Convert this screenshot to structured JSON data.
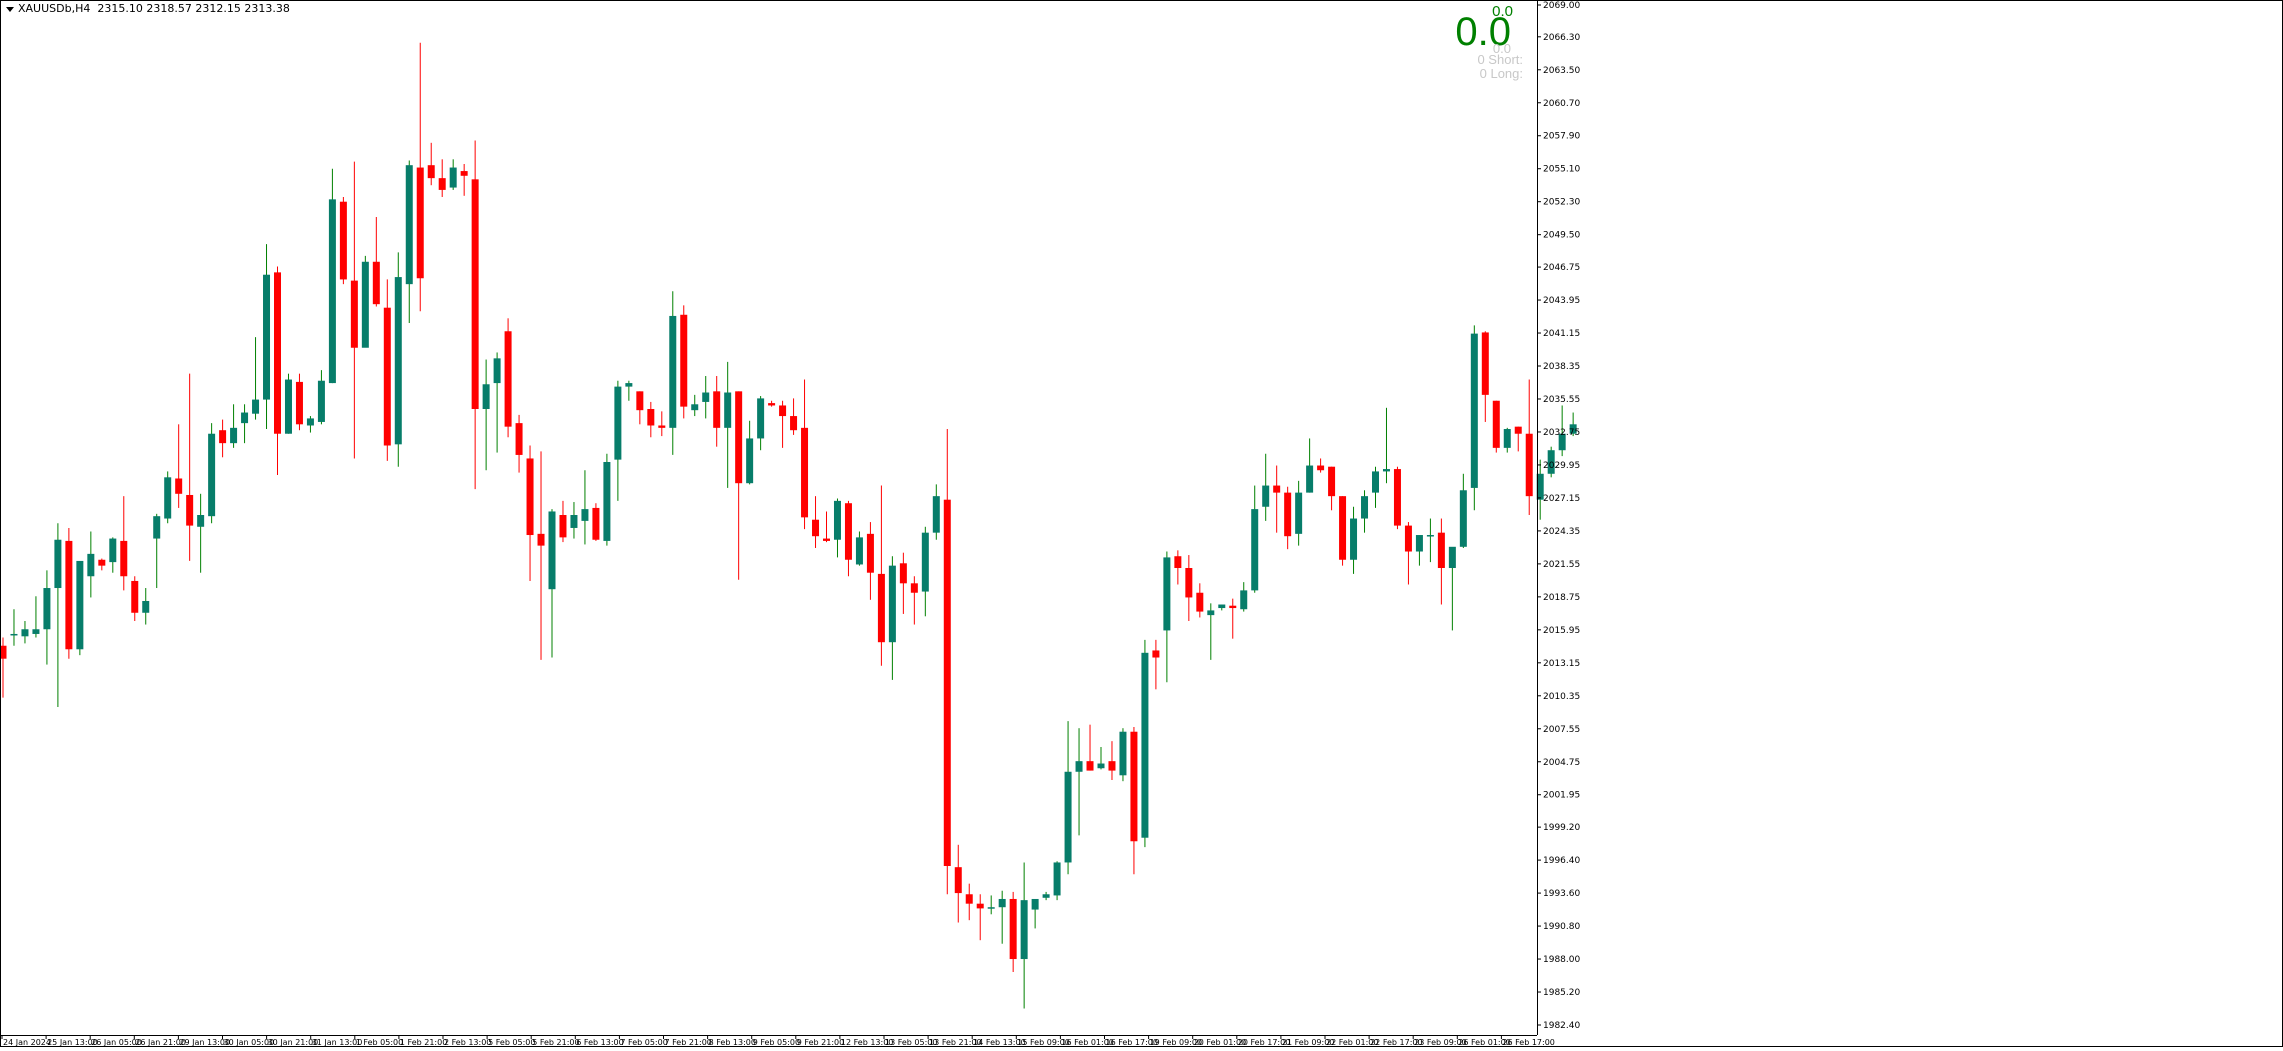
{
  "header": {
    "symbol": "XAUUSDb,H4",
    "ohlc": "2315.10 2318.57 2312.15 2313.38"
  },
  "hud": {
    "top_value": "0.0",
    "big_value": "0.0",
    "small_value": "0.0",
    "short_label": "0  Short:",
    "long_label": "0  Long:"
  },
  "colors": {
    "bull": "#077d6a",
    "bear": "#ff0000",
    "bull_wick": "#008000",
    "bear_wick": "#ff0000",
    "axis": "#000000",
    "background": "#ffffff"
  },
  "chart_data": {
    "type": "candlestick",
    "timeframe": "H4",
    "y_axis": {
      "min": 1982.4,
      "max": 2069.0,
      "position": "right",
      "tick_labels": [
        "2069.00",
        "2066.30",
        "2063.50",
        "2060.70",
        "2057.90",
        "2055.10",
        "2052.30",
        "2049.50",
        "2046.75",
        "2043.95",
        "2041.15",
        "2038.35",
        "2035.55",
        "2032.75",
        "2029.95",
        "2027.15",
        "2024.35",
        "2021.55",
        "2018.75",
        "2015.95",
        "2013.15",
        "2010.35",
        "2007.55",
        "2004.75",
        "2001.95",
        "1999.20",
        "1996.40",
        "1993.60",
        "1990.80",
        "1988.00",
        "1985.20",
        "1982.40"
      ]
    },
    "x_axis": {
      "tick_labels": [
        "24 Jan 2024",
        "25 Jan 13:00",
        "26 Jan 05:00",
        "26 Jan 21:00",
        "29 Jan 13:00",
        "30 Jan 05:00",
        "30 Jan 21:00",
        "31 Jan 13:00",
        "1 Feb 05:00",
        "1 Feb 21:00",
        "2 Feb 13:00",
        "5 Feb 05:00",
        "5 Feb 21:00",
        "6 Feb 13:00",
        "7 Feb 05:00",
        "7 Feb 21:00",
        "8 Feb 13:00",
        "9 Feb 05:00",
        "9 Feb 21:00",
        "12 Feb 13:00",
        "13 Feb 05:00",
        "13 Feb 21:00",
        "14 Feb 13:00",
        "15 Feb 09:00",
        "16 Feb 01:00",
        "16 Feb 17:00",
        "19 Feb 09:00",
        "20 Feb 01:00",
        "20 Feb 17:00",
        "21 Feb 09:00",
        "22 Feb 01:00",
        "22 Feb 17:00",
        "23 Feb 09:00",
        "26 Feb 01:00",
        "26 Feb 17:00"
      ]
    },
    "candles": [
      [
        2014.6,
        2015.3,
        2010.2,
        2013.5
      ],
      [
        2015.5,
        2017.7,
        2014.6,
        2015.6
      ],
      [
        2015.4,
        2016.7,
        2014.8,
        2016.0
      ],
      [
        2015.6,
        2018.8,
        2015.3,
        2016.0
      ],
      [
        2016.0,
        2021.0,
        2013.0,
        2019.5
      ],
      [
        2019.5,
        2025.0,
        2009.4,
        2023.6
      ],
      [
        2023.5,
        2024.6,
        2013.5,
        2014.3
      ],
      [
        2014.3,
        2021.6,
        2013.8,
        2021.8
      ],
      [
        2020.5,
        2024.3,
        2018.7,
        2022.4
      ],
      [
        2021.9,
        2022.0,
        2021.0,
        2021.4
      ],
      [
        2021.7,
        2023.8,
        2020.8,
        2023.7
      ],
      [
        2023.5,
        2027.3,
        2019.3,
        2020.5
      ],
      [
        2020.1,
        2020.5,
        2016.7,
        2017.4
      ],
      [
        2017.4,
        2019.5,
        2016.4,
        2018.4
      ],
      [
        2023.7,
        2025.8,
        2019.5,
        2025.6
      ],
      [
        2025.4,
        2029.4,
        2025.0,
        2028.9
      ],
      [
        2028.8,
        2033.4,
        2026.3,
        2027.5
      ],
      [
        2027.4,
        2037.7,
        2021.8,
        2024.8
      ],
      [
        2024.7,
        2027.5,
        2020.8,
        2025.7
      ],
      [
        2025.6,
        2033.5,
        2025.0,
        2032.6
      ],
      [
        2032.9,
        2033.8,
        2030.6,
        2031.8
      ],
      [
        2031.8,
        2035.1,
        2031.4,
        2033.1
      ],
      [
        2033.5,
        2035.1,
        2031.8,
        2034.4
      ],
      [
        2034.3,
        2040.8,
        2033.8,
        2035.5
      ],
      [
        2035.5,
        2048.7,
        2033.0,
        2046.1
      ],
      [
        2046.3,
        2046.8,
        2029.1,
        2032.6
      ],
      [
        2032.6,
        2037.7,
        2032.6,
        2037.2
      ],
      [
        2037.0,
        2037.7,
        2032.9,
        2033.4
      ],
      [
        2033.3,
        2034.1,
        2032.7,
        2033.9
      ],
      [
        2033.6,
        2038.0,
        2033.4,
        2037.1
      ],
      [
        2036.9,
        2055.1,
        2036.9,
        2052.5
      ],
      [
        2052.3,
        2052.7,
        2045.3,
        2045.7
      ],
      [
        2045.6,
        2055.7,
        2030.5,
        2039.9
      ],
      [
        2039.9,
        2047.7,
        2040.1,
        2047.2
      ],
      [
        2047.2,
        2051.0,
        2043.4,
        2043.6
      ],
      [
        2043.3,
        2045.7,
        2030.3,
        2031.6
      ],
      [
        2031.7,
        2048.0,
        2029.8,
        2045.9
      ],
      [
        2045.3,
        2055.8,
        2042.0,
        2055.4
      ],
      [
        2055.2,
        2065.8,
        2043.0,
        2045.8
      ],
      [
        2055.4,
        2057.3,
        2053.7,
        2054.3
      ],
      [
        2054.3,
        2055.9,
        2052.7,
        2053.3
      ],
      [
        2053.5,
        2055.9,
        2053.3,
        2055.2
      ],
      [
        2054.9,
        2055.5,
        2052.8,
        2054.5
      ],
      [
        2054.2,
        2057.5,
        2027.9,
        2034.7
      ],
      [
        2034.7,
        2038.9,
        2029.5,
        2036.8
      ],
      [
        2036.9,
        2039.5,
        2031.0,
        2039.0
      ],
      [
        2041.3,
        2042.4,
        2032.3,
        2033.2
      ],
      [
        2033.5,
        2034.2,
        2029.3,
        2030.8
      ],
      [
        2030.5,
        2031.6,
        2020.1,
        2024.0
      ],
      [
        2024.1,
        2031.1,
        2013.4,
        2023.1
      ],
      [
        2019.4,
        2026.2,
        2013.6,
        2026.0
      ],
      [
        2025.7,
        2026.9,
        2023.4,
        2023.8
      ],
      [
        2024.6,
        2026.8,
        2023.7,
        2025.7
      ],
      [
        2025.2,
        2029.5,
        2023.2,
        2026.2
      ],
      [
        2026.3,
        2026.7,
        2023.5,
        2023.6
      ],
      [
        2023.5,
        2030.9,
        2023.1,
        2030.2
      ],
      [
        2030.4,
        2037.1,
        2026.9,
        2036.6
      ],
      [
        2036.6,
        2037.1,
        2035.4,
        2036.9
      ],
      [
        2036.2,
        2036.2,
        2033.4,
        2034.6
      ],
      [
        2034.7,
        2035.3,
        2032.3,
        2033.3
      ],
      [
        2033.3,
        2034.5,
        2032.4,
        2033.1
      ],
      [
        2033.1,
        2044.7,
        2030.8,
        2042.6
      ],
      [
        2042.7,
        2043.5,
        2033.9,
        2034.9
      ],
      [
        2034.6,
        2035.9,
        2034.1,
        2035.1
      ],
      [
        2035.3,
        2037.5,
        2033.9,
        2036.1
      ],
      [
        2036.2,
        2037.5,
        2031.5,
        2033.1
      ],
      [
        2033.1,
        2038.7,
        2028.0,
        2036.1
      ],
      [
        2036.2,
        2036.2,
        2020.2,
        2028.4
      ],
      [
        2028.4,
        2033.7,
        2028.3,
        2032.2
      ],
      [
        2032.2,
        2035.8,
        2031.2,
        2035.6
      ],
      [
        2035.2,
        2035.4,
        2034.9,
        2035.0
      ],
      [
        2035.0,
        2035.4,
        2031.4,
        2034.1
      ],
      [
        2034.1,
        2035.6,
        2032.5,
        2032.9
      ],
      [
        2033.1,
        2037.2,
        2024.5,
        2025.5
      ],
      [
        2025.3,
        2027.3,
        2022.9,
        2023.9
      ],
      [
        2023.7,
        2026.0,
        2023.4,
        2023.5
      ],
      [
        2023.6,
        2027.1,
        2022.1,
        2026.9
      ],
      [
        2026.7,
        2026.9,
        2020.5,
        2021.9
      ],
      [
        2021.5,
        2024.3,
        2021.4,
        2023.8
      ],
      [
        2024.1,
        2025.1,
        2018.5,
        2020.8
      ],
      [
        2020.7,
        2028.2,
        2012.9,
        2014.9
      ],
      [
        2014.9,
        2022.2,
        2011.7,
        2021.4
      ],
      [
        2021.6,
        2022.5,
        2017.3,
        2019.9
      ],
      [
        2019.9,
        2020.5,
        2016.4,
        2019.1
      ],
      [
        2019.2,
        2024.7,
        2017.1,
        2024.2
      ],
      [
        2024.2,
        2028.3,
        2023.6,
        2027.3
      ],
      [
        2027.0,
        2033.0,
        1993.5,
        1995.9
      ],
      [
        1995.8,
        1997.7,
        1991.1,
        1993.6
      ],
      [
        1993.5,
        1994.4,
        1991.3,
        1992.7
      ],
      [
        1992.7,
        1993.5,
        1989.6,
        1992.3
      ],
      [
        1992.4,
        1993.4,
        1991.8,
        1992.4
      ],
      [
        1992.4,
        1993.8,
        1989.3,
        1993.1
      ],
      [
        1993.1,
        1993.7,
        1986.9,
        1988.0
      ],
      [
        1988.0,
        1996.2,
        1983.8,
        1993.0
      ],
      [
        1992.2,
        1993.0,
        1990.6,
        1993.1
      ],
      [
        1993.2,
        1993.7,
        1993.0,
        1993.5
      ],
      [
        1993.4,
        1996.3,
        1993.0,
        1996.2
      ],
      [
        1996.2,
        2008.2,
        1995.2,
        2003.9
      ],
      [
        2003.9,
        2007.6,
        1998.5,
        2004.8
      ],
      [
        2004.8,
        2007.9,
        2004.0,
        2004.0
      ],
      [
        2004.2,
        2006.0,
        2004.1,
        2004.6
      ],
      [
        2004.8,
        2006.5,
        2003.2,
        2004.0
      ],
      [
        2003.6,
        2007.6,
        2003.1,
        2007.3
      ],
      [
        2007.3,
        2007.7,
        1995.2,
        1998.0
      ],
      [
        1998.3,
        2015.1,
        1997.5,
        2014.0
      ],
      [
        2014.2,
        2015.1,
        2010.9,
        2013.6
      ],
      [
        2015.9,
        2022.6,
        2011.5,
        2022.1
      ],
      [
        2022.2,
        2022.7,
        2019.8,
        2021.2
      ],
      [
        2021.2,
        2022.3,
        2016.7,
        2018.7
      ],
      [
        2019.1,
        2019.9,
        2017.0,
        2017.5
      ],
      [
        2017.2,
        2018.2,
        2013.4,
        2017.6
      ],
      [
        2017.8,
        2018.1,
        2017.6,
        2018.1
      ],
      [
        2018.0,
        2018.6,
        2015.2,
        2017.8
      ],
      [
        2017.7,
        2020.0,
        2017.5,
        2019.3
      ],
      [
        2019.3,
        2028.2,
        2019.1,
        2026.2
      ],
      [
        2026.4,
        2030.9,
        2025.2,
        2028.2
      ],
      [
        2028.2,
        2029.9,
        2024.2,
        2027.6
      ],
      [
        2027.6,
        2028.1,
        2022.8,
        2023.9
      ],
      [
        2024.1,
        2028.6,
        2023.1,
        2027.6
      ],
      [
        2027.6,
        2032.2,
        2027.6,
        2029.9
      ],
      [
        2029.9,
        2030.5,
        2029.3,
        2029.5
      ],
      [
        2029.8,
        2029.8,
        2026.1,
        2027.3
      ],
      [
        2027.3,
        2027.3,
        2021.4,
        2021.9
      ],
      [
        2021.9,
        2026.4,
        2020.7,
        2025.4
      ],
      [
        2025.4,
        2027.8,
        2024.2,
        2027.3
      ],
      [
        2027.6,
        2029.8,
        2026.3,
        2029.4
      ],
      [
        2029.4,
        2034.8,
        2028.4,
        2029.6
      ],
      [
        2029.6,
        2029.8,
        2024.5,
        2024.8
      ],
      [
        2024.8,
        2025.1,
        2019.8,
        2022.6
      ],
      [
        2022.6,
        2023.9,
        2021.4,
        2024.0
      ],
      [
        2024.0,
        2025.4,
        2021.7,
        2024.0
      ],
      [
        2024.2,
        2025.4,
        2018.1,
        2021.2
      ],
      [
        2021.2,
        2022.8,
        2015.9,
        2023.0
      ],
      [
        2023.0,
        2029.2,
        2022.9,
        2027.8
      ],
      [
        2028.0,
        2041.8,
        2026.1,
        2041.1
      ],
      [
        2041.2,
        2041.3,
        2033.6,
        2035.9
      ],
      [
        2035.4,
        2035.4,
        2031.0,
        2031.4
      ],
      [
        2031.4,
        2033.1,
        2031.0,
        2033.0
      ],
      [
        2033.2,
        2033.2,
        2031.1,
        2032.6
      ],
      [
        2032.6,
        2037.2,
        2025.7,
        2027.3
      ],
      [
        2027.0,
        2030.4,
        2025.3,
        2029.2
      ],
      [
        2029.2,
        2031.5,
        2028.9,
        2031.2
      ],
      [
        2031.2,
        2035.0,
        2030.7,
        2032.6
      ],
      [
        2032.6,
        2034.4,
        2032.4,
        2033.4
      ]
    ]
  }
}
